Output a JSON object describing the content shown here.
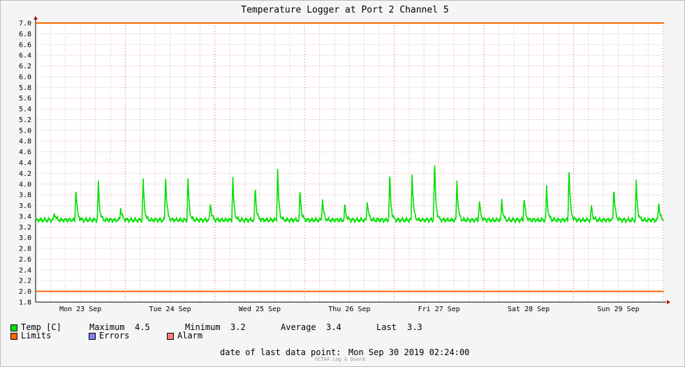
{
  "chart_data": {
    "type": "line",
    "title": "Temperature Logger at Port 2 Channel 5",
    "xlabel": "",
    "ylabel": "",
    "ylim": [
      1.8,
      7.0
    ],
    "y_ticks": [
      "1.8",
      "2.0",
      "2.2",
      "2.4",
      "2.6",
      "2.8",
      "3.0",
      "3.2",
      "3.4",
      "3.6",
      "3.8",
      "4.0",
      "4.2",
      "4.4",
      "4.6",
      "4.8",
      "5.0",
      "5.2",
      "5.4",
      "5.6",
      "5.8",
      "6.0",
      "6.2",
      "6.4",
      "6.6",
      "6.8",
      "7.0"
    ],
    "x_range": [
      0,
      7.01
    ],
    "x_tick_labels": [
      {
        "label": "Mon 23 Sep",
        "x": 0.5
      },
      {
        "label": "Tue 24 Sep",
        "x": 1.5
      },
      {
        "label": "Wed 25 Sep",
        "x": 2.5
      },
      {
        "label": "Thu 26 Sep",
        "x": 3.5
      },
      {
        "label": "Fri 27 Sep",
        "x": 4.5
      },
      {
        "label": "Sat 28 Sep",
        "x": 5.5
      },
      {
        "label": "Sun 29 Sep",
        "x": 6.5
      }
    ],
    "grid": true,
    "limits": {
      "upper": 7.0,
      "lower": 2.0,
      "color": "#ff6600"
    },
    "series": [
      {
        "name": "Temp [C]",
        "color": "#00e000",
        "baseline": 3.33,
        "spikes": [
          {
            "x": 0.21,
            "peak": 3.48
          },
          {
            "x": 0.45,
            "peak": 3.95
          },
          {
            "x": 0.7,
            "peak": 4.05
          },
          {
            "x": 0.95,
            "peak": 3.58
          },
          {
            "x": 1.2,
            "peak": 4.08
          },
          {
            "x": 1.45,
            "peak": 4.2
          },
          {
            "x": 1.7,
            "peak": 4.1
          },
          {
            "x": 1.95,
            "peak": 3.67
          },
          {
            "x": 2.2,
            "peak": 4.1
          },
          {
            "x": 2.45,
            "peak": 3.98
          },
          {
            "x": 2.7,
            "peak": 4.28
          },
          {
            "x": 2.95,
            "peak": 3.9
          },
          {
            "x": 3.2,
            "peak": 3.73
          },
          {
            "x": 3.45,
            "peak": 3.62
          },
          {
            "x": 3.7,
            "peak": 3.7
          },
          {
            "x": 3.95,
            "peak": 4.2
          },
          {
            "x": 4.2,
            "peak": 4.2
          },
          {
            "x": 4.45,
            "peak": 4.47
          },
          {
            "x": 4.7,
            "peak": 4.05
          },
          {
            "x": 4.95,
            "peak": 3.72
          },
          {
            "x": 5.2,
            "peak": 3.7
          },
          {
            "x": 5.45,
            "peak": 3.78
          },
          {
            "x": 5.7,
            "peak": 3.95
          },
          {
            "x": 5.95,
            "peak": 4.35
          },
          {
            "x": 6.2,
            "peak": 3.6
          },
          {
            "x": 6.45,
            "peak": 3.95
          },
          {
            "x": 6.7,
            "peak": 4.05
          },
          {
            "x": 6.95,
            "peak": 3.68
          }
        ]
      }
    ]
  },
  "legend": {
    "temp_label": "Temp [C]",
    "maximum_label": "Maximum",
    "maximum_value": "4.5",
    "minimum_label": "Minimum",
    "minimum_value": "3.2",
    "average_label": "Average",
    "average_value": "3.4",
    "last_label": "Last",
    "last_value": "3.3",
    "limits_label": "Limits",
    "errors_label": "Errors",
    "alarm_label": "Alarm",
    "colors": {
      "temp": "#00e000",
      "limits": "#ff6600",
      "errors": "#7f7fff",
      "alarm": "#ff7f7f"
    }
  },
  "footer": {
    "last_data_label": "date of last data point:",
    "last_data_value": "Mon Sep 30 2019 02:24:00",
    "credit": "OCTAA Log & Guard"
  }
}
